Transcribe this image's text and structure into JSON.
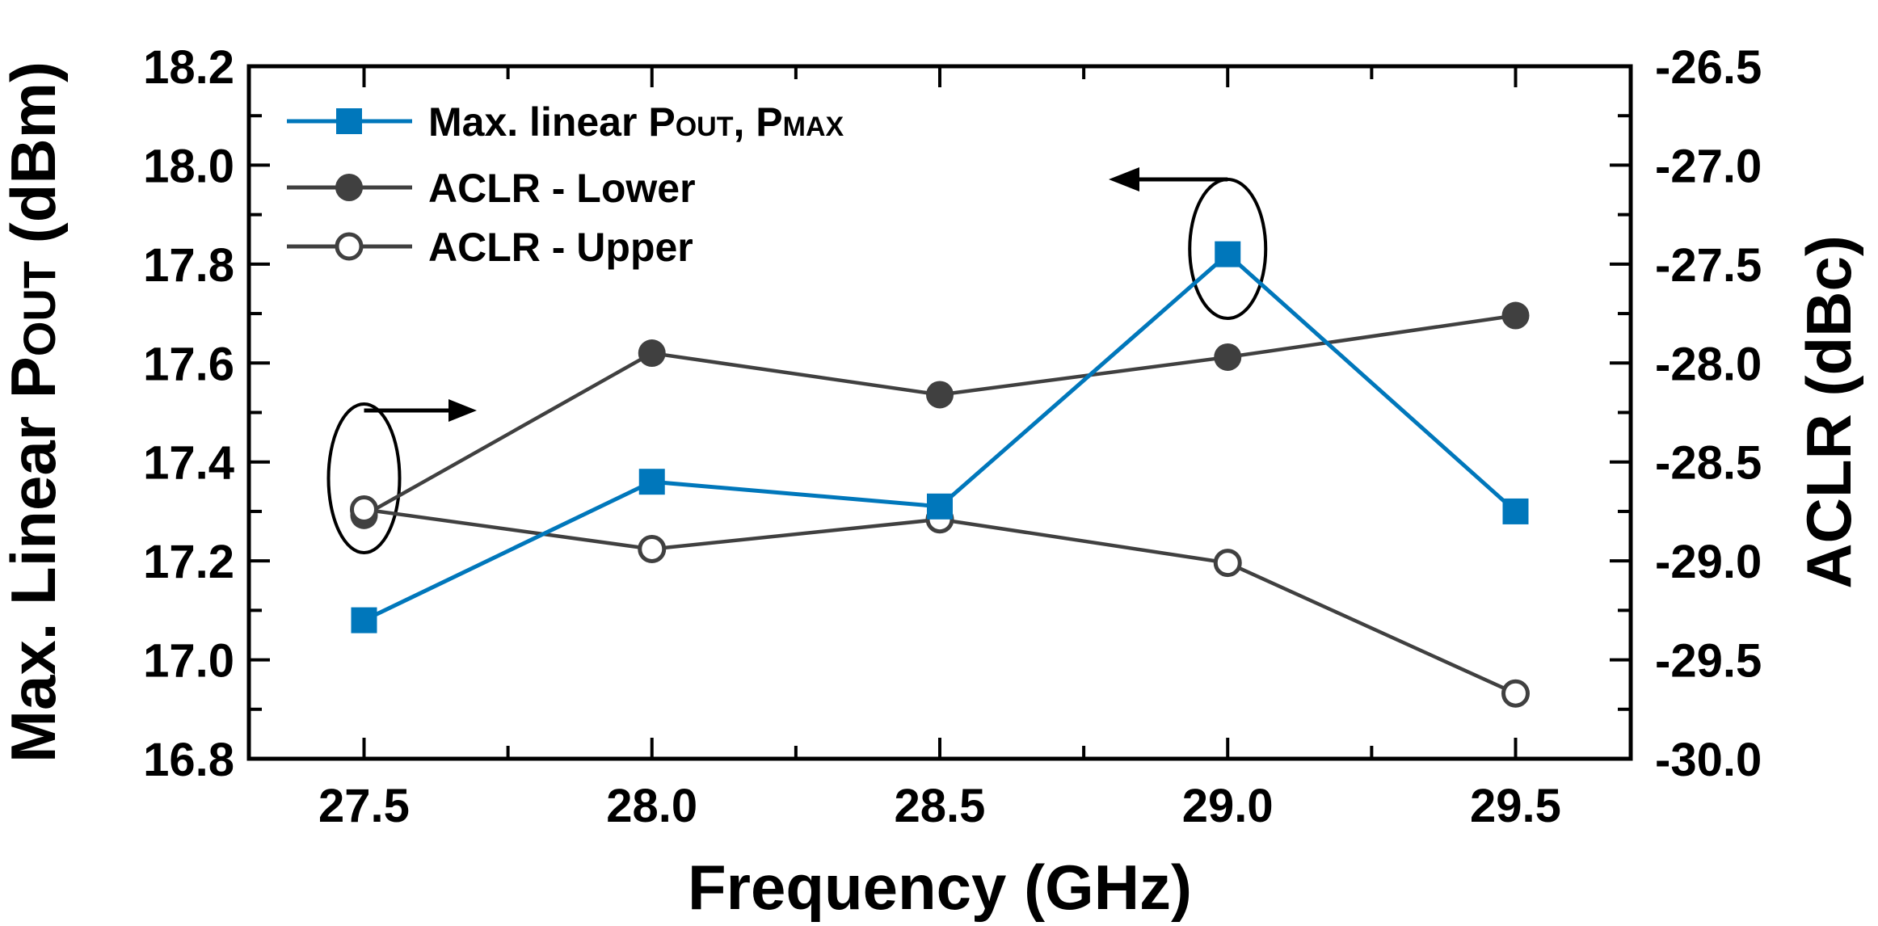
{
  "chart_data": {
    "type": "line",
    "xlabel": "Frequency (GHz)",
    "ylabel_left": {
      "main": "Max. Linear P",
      "sub": "OUT",
      "unit": " (dBm)"
    },
    "ylabel_right": "ACLR (dBc)",
    "xlim": [
      27.3,
      29.7
    ],
    "ylim_left": [
      16.8,
      18.2
    ],
    "ylim_right": [
      -30.0,
      -26.5
    ],
    "x_ticks": [
      "27.5",
      "28.0",
      "28.5",
      "29.0",
      "29.5"
    ],
    "y_ticks_left": [
      "16.8",
      "17.0",
      "17.2",
      "17.4",
      "17.6",
      "17.8",
      "18.0",
      "18.2"
    ],
    "y_ticks_right": [
      "-30.0",
      "-29.5",
      "-29.0",
      "-28.5",
      "-28.0",
      "-27.5",
      "-27.0",
      "-26.5"
    ],
    "x": [
      27.5,
      28.0,
      28.5,
      29.0,
      29.5
    ],
    "legend_position": "top-left",
    "grid": false,
    "series": [
      {
        "name": "Max. linear POUT, PMAX",
        "legend": {
          "a": "Max. linear P",
          "b": "OUT",
          "c": ", P",
          "d": "MAX"
        },
        "axis": "left",
        "marker": "square",
        "color": "#0077bb",
        "values": [
          17.08,
          17.36,
          17.31,
          17.82,
          17.3
        ]
      },
      {
        "name": "ACLR - Lower",
        "axis": "right",
        "marker": "filled-circle",
        "color": "#404040",
        "values": [
          -28.77,
          -27.95,
          -28.16,
          -27.97,
          -27.76
        ]
      },
      {
        "name": "ACLR - Upper",
        "axis": "right",
        "marker": "open-circle",
        "color": "#404040",
        "values": [
          -28.74,
          -28.94,
          -28.79,
          -29.01,
          -29.67
        ]
      }
    ],
    "annotations": [
      {
        "type": "ellipse-arrow",
        "x": 27.5,
        "direction": "right",
        "meaning": "ACLR series use right axis"
      },
      {
        "type": "ellipse-arrow",
        "x": 29.0,
        "direction": "left",
        "meaning": "Pmax series uses left axis"
      }
    ]
  }
}
